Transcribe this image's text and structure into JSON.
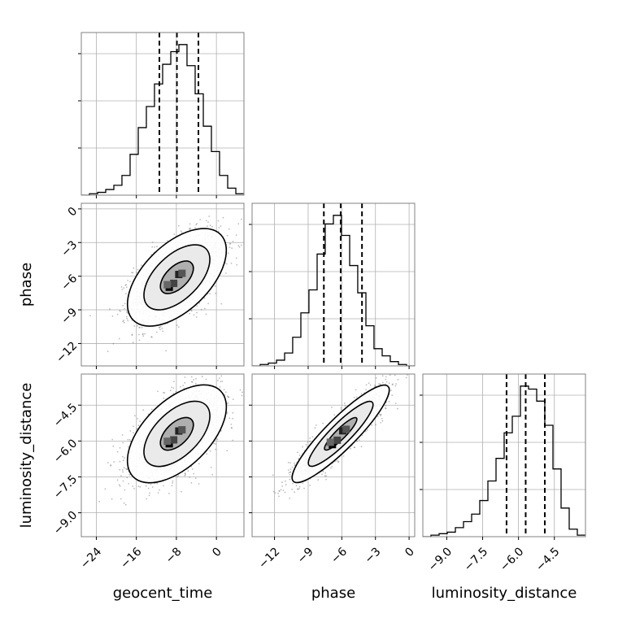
{
  "chart_data": {
    "type": "corner",
    "parameters": [
      "geocent_time",
      "phase",
      "luminosity_distance"
    ],
    "axis_labels": {
      "geocent_time": "geocent_time",
      "phase": "phase",
      "luminosity_distance": "luminosity_distance"
    },
    "ranges": {
      "geocent_time": [
        -27,
        5.5
      ],
      "phase": [
        -14,
        0.5
      ],
      "luminosity_distance": [
        -10.0,
        -3.2
      ]
    },
    "ticks": {
      "geocent_time": [
        -24,
        -16,
        -8,
        0
      ],
      "phase": [
        -12,
        -9,
        -6,
        -3,
        0
      ],
      "luminosity_distance": [
        -9.0,
        -7.5,
        -6.0,
        -4.5
      ]
    },
    "tick_labels": {
      "geocent_time": [
        "−24",
        "−16",
        "−8",
        "0"
      ],
      "phase": [
        "−12",
        "−9",
        "−6",
        "−3",
        "0"
      ],
      "luminosity_distance": [
        "−9.0",
        "−7.5",
        "−6.0",
        "−4.5"
      ]
    },
    "quantiles": {
      "geocent_time": [
        -11.4,
        -7.9,
        -3.6
      ],
      "phase": [
        -7.6,
        -6.1,
        -4.2
      ],
      "luminosity_distance": [
        -6.5,
        -5.7,
        -4.9
      ]
    },
    "histograms": {
      "geocent_time": {
        "bin_edges": [
          -27.0,
          -25.38,
          -23.75,
          -22.12,
          -20.5,
          -18.88,
          -17.25,
          -15.62,
          -14.0,
          -12.38,
          -10.75,
          -9.12,
          -7.5,
          -5.88,
          -4.25,
          -2.62,
          -1.0,
          0.62,
          2.25,
          3.88,
          5.5
        ],
        "counts": [
          0,
          1,
          2,
          4,
          7,
          14,
          29,
          48,
          63,
          79,
          93,
          102,
          107,
          92,
          72,
          49,
          31,
          14,
          5,
          1
        ]
      },
      "phase": {
        "bin_edges": [
          -14.0,
          -13.28,
          -12.55,
          -11.82,
          -11.1,
          -10.38,
          -9.65,
          -8.93,
          -8.2,
          -7.48,
          -6.75,
          -6.03,
          -5.3,
          -4.58,
          -3.85,
          -3.13,
          -2.4,
          -1.68,
          -0.95,
          -0.23,
          0.5
        ],
        "counts": [
          0,
          1,
          2,
          4,
          9,
          20,
          37,
          53,
          78,
          99,
          105,
          91,
          70,
          51,
          28,
          12,
          7,
          3,
          1,
          0
        ]
      },
      "luminosity_distance": {
        "bin_edges": [
          -10.0,
          -9.66,
          -9.32,
          -8.98,
          -8.64,
          -8.3,
          -7.96,
          -7.62,
          -7.28,
          -6.94,
          -6.6,
          -6.26,
          -5.92,
          -5.58,
          -5.24,
          -4.9,
          -4.56,
          -4.22,
          -3.88,
          -3.54,
          -3.2
        ],
        "counts": [
          0,
          1,
          2,
          3,
          6,
          10,
          15,
          24,
          37,
          52,
          69,
          80,
          100,
          98,
          90,
          74,
          45,
          19,
          5,
          1
        ]
      }
    },
    "correlations": {
      "phase|geocent_time": 0.55,
      "luminosity_distance|geocent_time": 0.55,
      "luminosity_distance|phase": 0.9
    },
    "hist_style": "step",
    "quantile_line_style": "dashed",
    "grid": true
  }
}
